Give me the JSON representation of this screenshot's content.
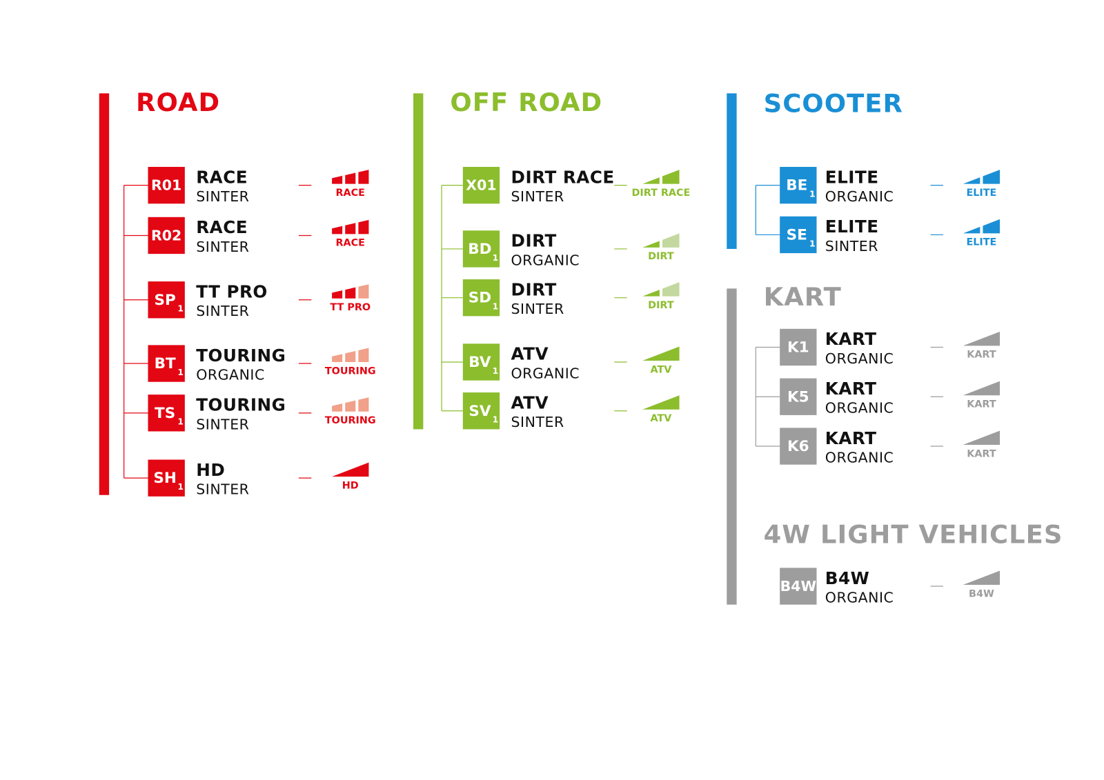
{
  "sections": [
    {
      "title": "ROAD",
      "items": [
        {
          "code": "R01",
          "name": "RACE",
          "compound": "SINTER",
          "badge": "RACE"
        },
        {
          "code": "R02",
          "name": "RACE",
          "compound": "SINTER",
          "badge": "RACE"
        },
        {
          "code": "SP",
          "sub": "1",
          "name": "TT PRO",
          "compound": "SINTER",
          "badge": "TT PRO"
        },
        {
          "code": "BT",
          "sub": "1",
          "name": "TOURING",
          "compound": "ORGANIC",
          "badge": "TOURING"
        },
        {
          "code": "TS",
          "sub": "1",
          "name": "TOURING",
          "compound": "SINTER",
          "badge": "TOURING"
        },
        {
          "code": "SH",
          "sub": "1",
          "name": "HD",
          "compound": "SINTER",
          "badge": "HD"
        }
      ]
    },
    {
      "title": "OFF ROAD",
      "items": [
        {
          "code": "X01",
          "name": "DIRT RACE",
          "compound": "SINTER",
          "badge": "DIRT RACE"
        },
        {
          "code": "BD",
          "sub": "1",
          "name": "DIRT",
          "compound": "ORGANIC",
          "badge": "DIRT"
        },
        {
          "code": "SD",
          "sub": "1",
          "name": "DIRT",
          "compound": "SINTER",
          "badge": "DIRT"
        },
        {
          "code": "BV",
          "sub": "1",
          "name": "ATV",
          "compound": "ORGANIC",
          "badge": "ATV"
        },
        {
          "code": "SV",
          "sub": "1",
          "name": "ATV",
          "compound": "SINTER",
          "badge": "ATV"
        }
      ]
    },
    {
      "title": "SCOOTER",
      "items": [
        {
          "code": "BE",
          "sub": "1",
          "name": "ELITE",
          "compound": "ORGANIC",
          "badge": "ELITE"
        },
        {
          "code": "SE",
          "sub": "1",
          "name": "ELITE",
          "compound": "SINTER",
          "badge": "ELITE"
        }
      ]
    },
    {
      "title": "KART",
      "items": [
        {
          "code": "K1",
          "name": "KART",
          "compound": "ORGANIC",
          "badge": "KART"
        },
        {
          "code": "K5",
          "name": "KART",
          "compound": "ORGANIC",
          "badge": "KART"
        },
        {
          "code": "K6",
          "name": "KART",
          "compound": "ORGANIC",
          "badge": "KART"
        }
      ]
    },
    {
      "title": "4W LIGHT VEHICLES",
      "items": [
        {
          "code": "B4W",
          "name": "B4W",
          "compound": "ORGANIC",
          "badge": "B4W"
        }
      ]
    }
  ]
}
